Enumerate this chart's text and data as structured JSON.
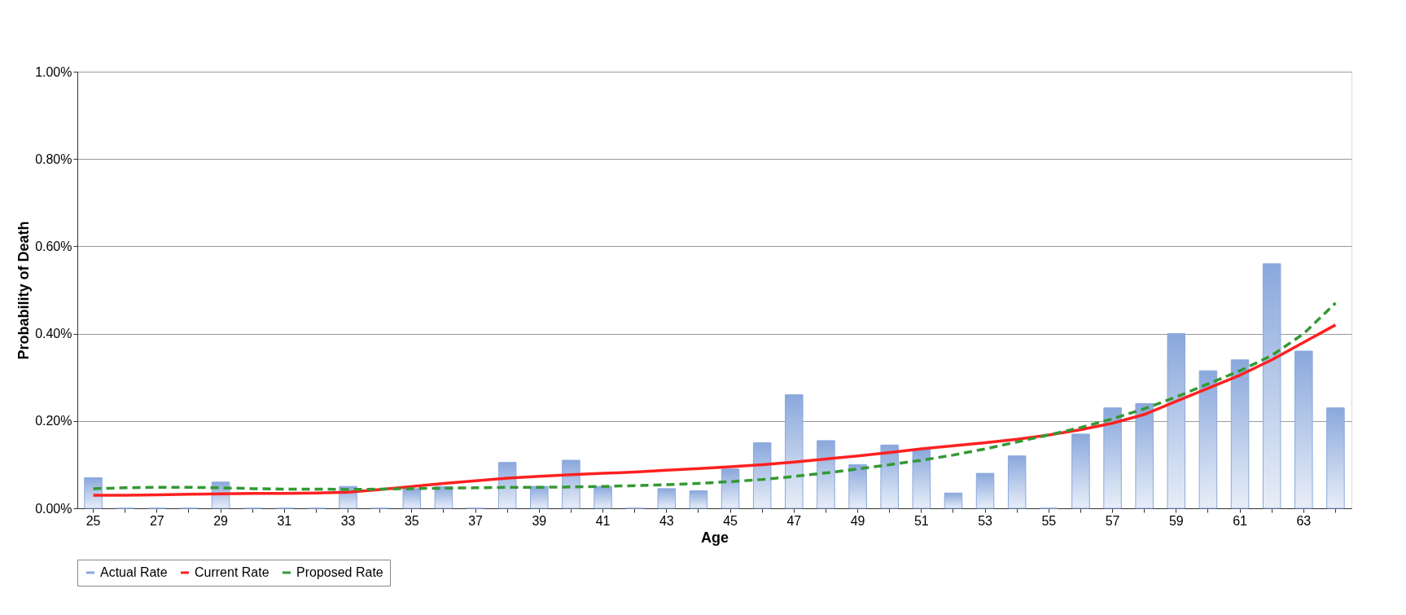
{
  "chart_data": {
    "type": "bar",
    "xlabel": "Age",
    "ylabel": "Probability of Death",
    "categories": [
      "25",
      null,
      "27",
      null,
      "29",
      null,
      "31",
      null,
      "33",
      null,
      "35",
      null,
      "37",
      null,
      "39",
      null,
      "41",
      null,
      "43",
      null,
      "45",
      null,
      "47",
      null,
      "49",
      null,
      "51",
      null,
      "53",
      null,
      "55",
      null,
      "57",
      null,
      "59",
      null,
      "61",
      null,
      "63",
      null
    ],
    "series": [
      {
        "name": "Actual Rate",
        "color": "#8aa8dc",
        "values": [
          0.07,
          0,
          0,
          0,
          0.06,
          0,
          0,
          0,
          0.05,
          0,
          0.045,
          0.05,
          0,
          0.105,
          0.05,
          0.11,
          0.05,
          0,
          0.045,
          0.04,
          0.09,
          0.15,
          0.26,
          0.155,
          0.1,
          0.145,
          0.135,
          0.035,
          0.08,
          0.12,
          0,
          0.17,
          0.23,
          0.24,
          0.4,
          0.315,
          0.34,
          0.56,
          0.36,
          0.23
        ]
      },
      {
        "name": "Current Rate",
        "type": "line",
        "color": "#ff2020",
        "line_style": "solid",
        "values": [
          0.03,
          0.03,
          0.031,
          0.032,
          0.033,
          0.034,
          0.034,
          0.035,
          0.037,
          0.043,
          0.05,
          0.057,
          0.063,
          0.069,
          0.073,
          0.077,
          0.08,
          0.083,
          0.087,
          0.091,
          0.095,
          0.1,
          0.106,
          0.113,
          0.12,
          0.128,
          0.136,
          0.143,
          0.15,
          0.158,
          0.168,
          0.18,
          0.195,
          0.215,
          0.245,
          0.275,
          0.305,
          0.34,
          0.38,
          0.42
        ]
      },
      {
        "name": "Proposed Rate",
        "type": "line",
        "color": "#339933",
        "line_style": "dashed",
        "values": [
          0.045,
          0.047,
          0.048,
          0.048,
          0.047,
          0.045,
          0.044,
          0.044,
          0.043,
          0.044,
          0.045,
          0.046,
          0.047,
          0.048,
          0.048,
          0.049,
          0.05,
          0.052,
          0.054,
          0.057,
          0.061,
          0.066,
          0.073,
          0.081,
          0.09,
          0.1,
          0.11,
          0.122,
          0.136,
          0.152,
          0.168,
          0.185,
          0.205,
          0.228,
          0.255,
          0.285,
          0.315,
          0.35,
          0.4,
          0.47
        ]
      }
    ],
    "ylim": [
      0,
      1.0
    ],
    "yticks": [
      {
        "value": 0,
        "label": "0.00%"
      },
      {
        "value": 0.2,
        "label": "0.20%"
      },
      {
        "value": 0.4,
        "label": "0.40%"
      },
      {
        "value": 0.6,
        "label": "0.60%"
      },
      {
        "value": 0.8,
        "label": "0.80%"
      },
      {
        "value": 1.0,
        "label": "1.00%"
      }
    ],
    "grid": "y",
    "legend": "bottom",
    "marker": "none"
  }
}
